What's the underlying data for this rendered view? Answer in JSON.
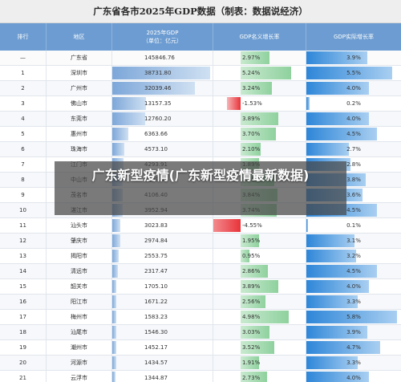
{
  "title": "广东省各市2025年GDP数据（制表：数据说经济）",
  "headers": {
    "rank": "排行",
    "region": "地区",
    "gdp_line1": "2025年GDP",
    "gdp_line2": "（单位：亿元）",
    "nominal": "GDP名义增长率",
    "real": "GDP实际增长率"
  },
  "overlay_title": "广东新型疫情(广东新型疫情最新数据)",
  "rows": [
    {
      "rank": "—",
      "region": "广东省",
      "gdp": "145846.76",
      "nominal": "2.97%",
      "real": "3.9%"
    },
    {
      "rank": "1",
      "region": "深圳市",
      "gdp": "38731.80",
      "nominal": "5.24%",
      "real": "5.5%"
    },
    {
      "rank": "2",
      "region": "广州市",
      "gdp": "32039.46",
      "nominal": "3.24%",
      "real": "4.0%"
    },
    {
      "rank": "3",
      "region": "佛山市",
      "gdp": "13157.35",
      "nominal": "-1.53%",
      "real": "0.2%"
    },
    {
      "rank": "4",
      "region": "东莞市",
      "gdp": "12760.20",
      "nominal": "3.89%",
      "real": "4.0%"
    },
    {
      "rank": "5",
      "region": "惠州市",
      "gdp": "6363.66",
      "nominal": "3.70%",
      "real": "4.5%"
    },
    {
      "rank": "6",
      "region": "珠海市",
      "gdp": "4573.10",
      "nominal": "2.10%",
      "real": "2.7%"
    },
    {
      "rank": "7",
      "region": "江门市",
      "gdp": "4293.91",
      "nominal": "1.89%",
      "real": "2.8%"
    },
    {
      "rank": "8",
      "region": "中山市",
      "gdp": "4209.01",
      "nominal": "3.48%",
      "real": "3.8%"
    },
    {
      "rank": "9",
      "region": "茂名市",
      "gdp": "4106.40",
      "nominal": "3.84%",
      "real": "3.6%"
    },
    {
      "rank": "10",
      "region": "湛江市",
      "gdp": "3952.94",
      "nominal": "3.74%",
      "real": "4.5%"
    },
    {
      "rank": "11",
      "region": "汕头市",
      "gdp": "3023.83",
      "nominal": "-4.55%",
      "real": "0.1%"
    },
    {
      "rank": "12",
      "region": "肇庆市",
      "gdp": "2974.84",
      "nominal": "1.95%",
      "real": "3.1%"
    },
    {
      "rank": "13",
      "region": "揭阳市",
      "gdp": "2553.75",
      "nominal": "0.95%",
      "real": "3.2%"
    },
    {
      "rank": "14",
      "region": "清远市",
      "gdp": "2317.47",
      "nominal": "2.86%",
      "real": "4.5%"
    },
    {
      "rank": "15",
      "region": "韶关市",
      "gdp": "1705.10",
      "nominal": "3.89%",
      "real": "4.0%"
    },
    {
      "rank": "16",
      "region": "阳江市",
      "gdp": "1671.22",
      "nominal": "2.56%",
      "real": "3.3%"
    },
    {
      "rank": "17",
      "region": "梅州市",
      "gdp": "1583.23",
      "nominal": "4.98%",
      "real": "5.8%"
    },
    {
      "rank": "18",
      "region": "汕尾市",
      "gdp": "1546.30",
      "nominal": "3.03%",
      "real": "3.9%"
    },
    {
      "rank": "19",
      "region": "潮州市",
      "gdp": "1452.17",
      "nominal": "3.52%",
      "real": "4.7%"
    },
    {
      "rank": "20",
      "region": "河源市",
      "gdp": "1434.57",
      "nominal": "1.91%",
      "real": "3.3%"
    },
    {
      "rank": "21",
      "region": "云浮市",
      "gdp": "1344.87",
      "nominal": "2.73%",
      "real": "4.0%"
    }
  ],
  "colors": {
    "header_bg": "#6c9cd1",
    "gdp_bar": "#7da7d9",
    "nominal_positive": "#8fd19e",
    "nominal_negative": "#e8333a",
    "real_bar": "#2e86d8"
  }
}
